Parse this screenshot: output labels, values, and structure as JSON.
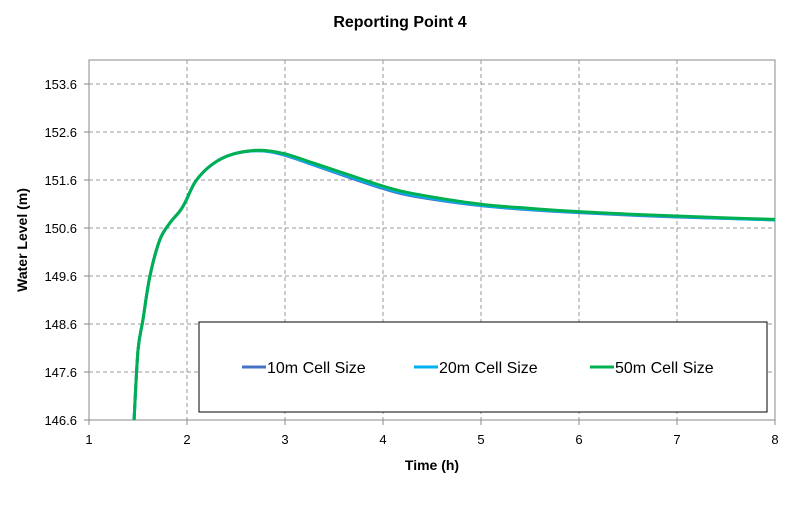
{
  "chart_data": {
    "type": "line",
    "title": "Reporting Point 4",
    "xlabel": "Time (h)",
    "ylabel": "Water Level (m)",
    "xlim": [
      1,
      8
    ],
    "ylim": [
      146.6,
      154.1
    ],
    "xticks": [
      "1",
      "2",
      "3",
      "4",
      "5",
      "6",
      "7",
      "8"
    ],
    "yticks": [
      "146.6",
      "147.6",
      "148.6",
      "149.6",
      "150.6",
      "151.6",
      "152.6",
      "153.6"
    ],
    "grid": true,
    "legend_position": "bottom-right inside",
    "series": [
      {
        "name": "10m Cell Size",
        "color": "#4472C4",
        "x": [
          1.46,
          1.5,
          1.55,
          1.62,
          1.72,
          1.82,
          1.93,
          1.99,
          2.09,
          2.26,
          2.47,
          2.74,
          2.99,
          3.28,
          3.62,
          3.99,
          4.3,
          4.98,
          5.5,
          6,
          6.5,
          7,
          7.5,
          8
        ],
        "y": [
          146.6,
          148.05,
          148.68,
          149.58,
          150.34,
          150.69,
          150.96,
          151.17,
          151.58,
          151.93,
          152.14,
          152.21,
          152.12,
          151.92,
          151.68,
          151.43,
          151.27,
          151.07,
          150.98,
          150.92,
          150.87,
          150.83,
          150.8,
          150.77
        ]
      },
      {
        "name": "20m Cell Size",
        "color": "#00B0F0",
        "x": [
          1.46,
          1.5,
          1.55,
          1.62,
          1.72,
          1.82,
          1.93,
          1.99,
          2.09,
          2.26,
          2.47,
          2.74,
          2.99,
          3.28,
          3.62,
          3.99,
          4.3,
          4.98,
          5.5,
          6,
          6.5,
          7,
          7.5,
          8
        ],
        "y": [
          146.6,
          148.05,
          148.68,
          149.58,
          150.34,
          150.69,
          150.96,
          151.17,
          151.58,
          151.93,
          152.14,
          152.21,
          152.13,
          151.93,
          151.7,
          151.45,
          151.29,
          151.08,
          150.99,
          150.93,
          150.88,
          150.84,
          150.8,
          150.77
        ]
      },
      {
        "name": "50m Cell Size",
        "color": "#00B050",
        "x": [
          1.46,
          1.5,
          1.55,
          1.62,
          1.72,
          1.82,
          1.93,
          1.99,
          2.09,
          2.26,
          2.47,
          2.74,
          2.99,
          3.28,
          3.62,
          3.99,
          4.3,
          4.98,
          5.5,
          6,
          6.5,
          7,
          7.5,
          8
        ],
        "y": [
          146.6,
          148.05,
          148.68,
          149.58,
          150.34,
          150.69,
          150.96,
          151.17,
          151.58,
          151.93,
          152.14,
          152.22,
          152.15,
          151.96,
          151.73,
          151.48,
          151.32,
          151.1,
          151.01,
          150.94,
          150.89,
          150.85,
          150.81,
          150.78
        ]
      }
    ]
  }
}
